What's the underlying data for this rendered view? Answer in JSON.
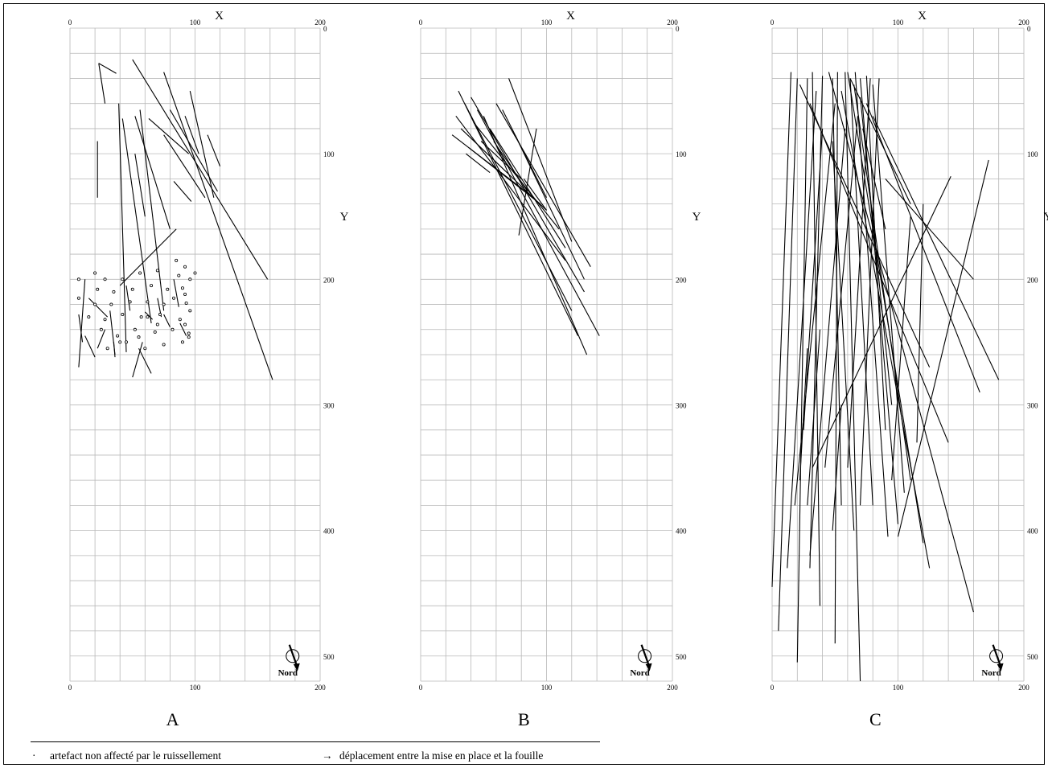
{
  "panels": [
    {
      "id": "A",
      "letter": "A",
      "x_axis_title": "X",
      "y_axis_title": "Y",
      "x_ticks": [
        "0",
        "100",
        "200"
      ],
      "y_ticks": [
        "0",
        "100",
        "200",
        "300",
        "400",
        "500"
      ],
      "north_label": "Nord",
      "grid": {
        "x_range": [
          0,
          200
        ],
        "y_range": [
          0,
          520
        ],
        "x_step": 20,
        "y_step": 20
      },
      "undisturbed_artefacts": [
        [
          7,
          200
        ],
        [
          7,
          215
        ],
        [
          20,
          195
        ],
        [
          28,
          200
        ],
        [
          42,
          200
        ],
        [
          56,
          195
        ],
        [
          70,
          193
        ],
        [
          87,
          197
        ],
        [
          100,
          195
        ],
        [
          22,
          208
        ],
        [
          35,
          210
        ],
        [
          50,
          208
        ],
        [
          65,
          205
        ],
        [
          78,
          208
        ],
        [
          90,
          207
        ],
        [
          20,
          220
        ],
        [
          33,
          220
        ],
        [
          48,
          218
        ],
        [
          62,
          218
        ],
        [
          75,
          220
        ],
        [
          93,
          219
        ],
        [
          15,
          230
        ],
        [
          28,
          232
        ],
        [
          42,
          228
        ],
        [
          57,
          230
        ],
        [
          72,
          228
        ],
        [
          88,
          232
        ],
        [
          25,
          240
        ],
        [
          38,
          245
        ],
        [
          52,
          240
        ],
        [
          68,
          242
        ],
        [
          82,
          240
        ],
        [
          95,
          243
        ],
        [
          30,
          255
        ],
        [
          45,
          250
        ],
        [
          60,
          255
        ],
        [
          75,
          252
        ],
        [
          90,
          250
        ],
        [
          85,
          185
        ],
        [
          92,
          190
        ],
        [
          96,
          200
        ],
        [
          92,
          212
        ],
        [
          96,
          225
        ],
        [
          92,
          236
        ],
        [
          95,
          246
        ],
        [
          40,
          250
        ],
        [
          55,
          246
        ],
        [
          70,
          236
        ],
        [
          83,
          215
        ],
        [
          62,
          230
        ]
      ],
      "displacements": [
        [
          [
            23,
            28
          ],
          [
            37,
            36
          ]
        ],
        [
          [
            23,
            28
          ],
          [
            28,
            60
          ]
        ],
        [
          [
            22,
            90
          ],
          [
            22,
            135
          ]
        ],
        [
          [
            50,
            25
          ],
          [
            158,
            200
          ]
        ],
        [
          [
            75,
            35
          ],
          [
            162,
            280
          ]
        ],
        [
          [
            63,
            72
          ],
          [
            95,
            100
          ]
        ],
        [
          [
            75,
            85
          ],
          [
            108,
            135
          ]
        ],
        [
          [
            80,
            65
          ],
          [
            118,
            130
          ]
        ],
        [
          [
            96,
            50
          ],
          [
            115,
            135
          ]
        ],
        [
          [
            92,
            70
          ],
          [
            103,
            100
          ]
        ],
        [
          [
            110,
            85
          ],
          [
            120,
            110
          ]
        ],
        [
          [
            52,
            70
          ],
          [
            80,
            160
          ]
        ],
        [
          [
            83,
            122
          ],
          [
            97,
            138
          ]
        ],
        [
          [
            39,
            60
          ],
          [
            45,
            258
          ]
        ],
        [
          [
            42,
            72
          ],
          [
            65,
            235
          ]
        ],
        [
          [
            52,
            100
          ],
          [
            60,
            150
          ]
        ],
        [
          [
            85,
            160
          ],
          [
            40,
            205
          ]
        ],
        [
          [
            56,
            65
          ],
          [
            75,
            225
          ]
        ],
        [
          [
            12,
            200
          ],
          [
            7,
            270
          ]
        ],
        [
          [
            7,
            228
          ],
          [
            10,
            250
          ]
        ],
        [
          [
            15,
            215
          ],
          [
            30,
            230
          ]
        ],
        [
          [
            12,
            245
          ],
          [
            20,
            262
          ]
        ],
        [
          [
            28,
            240
          ],
          [
            22,
            255
          ]
        ],
        [
          [
            32,
            225
          ],
          [
            36,
            260
          ]
        ],
        [
          [
            35,
            250
          ],
          [
            36,
            262
          ]
        ],
        [
          [
            55,
            255
          ],
          [
            65,
            275
          ]
        ],
        [
          [
            58,
            250
          ],
          [
            50,
            278
          ]
        ],
        [
          [
            45,
            205
          ],
          [
            48,
            225
          ]
        ],
        [
          [
            70,
            215
          ],
          [
            73,
            230
          ]
        ],
        [
          [
            83,
            200
          ],
          [
            87,
            222
          ]
        ],
        [
          [
            75,
            228
          ],
          [
            80,
            238
          ]
        ],
        [
          [
            88,
            235
          ],
          [
            93,
            245
          ]
        ],
        [
          [
            60,
            226
          ],
          [
            66,
            232
          ]
        ]
      ]
    },
    {
      "id": "B",
      "letter": "B",
      "x_axis_title": "X",
      "y_axis_title": "Y",
      "x_ticks": [
        "0",
        "100",
        "200"
      ],
      "y_ticks": [
        "0",
        "100",
        "200",
        "300",
        "400",
        "500"
      ],
      "north_label": "Nord",
      "grid": {
        "x_range": [
          0,
          200
        ],
        "y_range": [
          0,
          520
        ],
        "x_step": 20,
        "y_step": 20
      },
      "displacements": [
        [
          [
            30,
            50
          ],
          [
            125,
            245
          ]
        ],
        [
          [
            35,
            60
          ],
          [
            120,
            225
          ]
        ],
        [
          [
            40,
            55
          ],
          [
            130,
            210
          ]
        ],
        [
          [
            28,
            70
          ],
          [
            115,
            185
          ]
        ],
        [
          [
            45,
            65
          ],
          [
            142,
            245
          ]
        ],
        [
          [
            50,
            70
          ],
          [
            132,
            260
          ]
        ],
        [
          [
            60,
            60
          ],
          [
            135,
            190
          ]
        ],
        [
          [
            70,
            40
          ],
          [
            120,
            170
          ]
        ],
        [
          [
            25,
            85
          ],
          [
            90,
            135
          ]
        ],
        [
          [
            32,
            80
          ],
          [
            100,
            145
          ]
        ],
        [
          [
            42,
            75
          ],
          [
            110,
            160
          ]
        ],
        [
          [
            55,
            80
          ],
          [
            115,
            175
          ]
        ],
        [
          [
            65,
            65
          ],
          [
            100,
            135
          ]
        ],
        [
          [
            75,
            85
          ],
          [
            130,
            200
          ]
        ],
        [
          [
            82,
            120
          ],
          [
            100,
            145
          ]
        ],
        [
          [
            92,
            80
          ],
          [
            78,
            165
          ]
        ],
        [
          [
            38,
            95
          ],
          [
            95,
            140
          ]
        ],
        [
          [
            48,
            90
          ],
          [
            80,
            120
          ]
        ],
        [
          [
            58,
            90
          ],
          [
            85,
            130
          ]
        ],
        [
          [
            36,
            100
          ],
          [
            55,
            115
          ]
        ]
      ]
    },
    {
      "id": "C",
      "letter": "C",
      "x_axis_title": "X",
      "y_axis_title": "Y",
      "x_ticks": [
        "0",
        "100",
        "200"
      ],
      "y_ticks": [
        "0",
        "100",
        "200",
        "300",
        "400",
        "500"
      ],
      "north_label": "Nord",
      "grid": {
        "x_range": [
          0,
          200
        ],
        "y_range": [
          0,
          520
        ],
        "x_step": 20,
        "y_step": 20
      },
      "displacements": [
        [
          [
            15,
            35
          ],
          [
            0,
            445
          ]
        ],
        [
          [
            20,
            40
          ],
          [
            5,
            480
          ]
        ],
        [
          [
            28,
            40
          ],
          [
            20,
            505
          ]
        ],
        [
          [
            32,
            35
          ],
          [
            38,
            460
          ]
        ],
        [
          [
            40,
            38
          ],
          [
            30,
            430
          ]
        ],
        [
          [
            48,
            40
          ],
          [
            55,
            380
          ]
        ],
        [
          [
            52,
            35
          ],
          [
            50,
            490
          ]
        ],
        [
          [
            58,
            35
          ],
          [
            70,
            520
          ]
        ],
        [
          [
            62,
            40
          ],
          [
            80,
            380
          ]
        ],
        [
          [
            66,
            35
          ],
          [
            92,
            405
          ]
        ],
        [
          [
            70,
            40
          ],
          [
            100,
            395
          ]
        ],
        [
          [
            75,
            38
          ],
          [
            90,
            320
          ]
        ],
        [
          [
            80,
            45
          ],
          [
            105,
            370
          ]
        ],
        [
          [
            22,
            45
          ],
          [
            125,
            270
          ]
        ],
        [
          [
            30,
            60
          ],
          [
            140,
            330
          ]
        ],
        [
          [
            45,
            35
          ],
          [
            160,
            465
          ]
        ],
        [
          [
            55,
            50
          ],
          [
            125,
            430
          ]
        ],
        [
          [
            60,
            35
          ],
          [
            120,
            410
          ]
        ],
        [
          [
            65,
            45
          ],
          [
            110,
            360
          ]
        ],
        [
          [
            70,
            55
          ],
          [
            95,
            300
          ]
        ],
        [
          [
            75,
            60
          ],
          [
            165,
            290
          ]
        ],
        [
          [
            80,
            70
          ],
          [
            180,
            280
          ]
        ],
        [
          [
            90,
            120
          ],
          [
            160,
            200
          ]
        ],
        [
          [
            72,
            80
          ],
          [
            90,
            160
          ]
        ],
        [
          [
            35,
            50
          ],
          [
            12,
            430
          ]
        ],
        [
          [
            50,
            60
          ],
          [
            18,
            380
          ]
        ],
        [
          [
            40,
            80
          ],
          [
            25,
            320
          ]
        ],
        [
          [
            142,
            118
          ],
          [
            32,
            350
          ]
        ],
        [
          [
            172,
            105
          ],
          [
            100,
            405
          ]
        ],
        [
          [
            78,
            40
          ],
          [
            60,
            350
          ]
        ],
        [
          [
            85,
            40
          ],
          [
            70,
            380
          ]
        ],
        [
          [
            58,
            80
          ],
          [
            30,
            420
          ]
        ],
        [
          [
            68,
            70
          ],
          [
            42,
            350
          ]
        ],
        [
          [
            48,
            90
          ],
          [
            65,
            400
          ]
        ],
        [
          [
            38,
            240
          ],
          [
            28,
            380
          ]
        ],
        [
          [
            28,
            255
          ],
          [
            22,
            360
          ]
        ],
        [
          [
            55,
            300
          ],
          [
            48,
            400
          ]
        ],
        [
          [
            110,
            150
          ],
          [
            95,
            360
          ]
        ],
        [
          [
            120,
            140
          ],
          [
            115,
            330
          ]
        ],
        [
          [
            62,
            40
          ],
          [
            110,
            140
          ]
        ]
      ]
    }
  ],
  "legend": {
    "undisturbed_symbol": "·",
    "undisturbed_label": "artefact non affecté par le ruissellement",
    "displacement_symbol": "→",
    "displacement_label": "déplacement entre la mise en place et la fouille"
  }
}
